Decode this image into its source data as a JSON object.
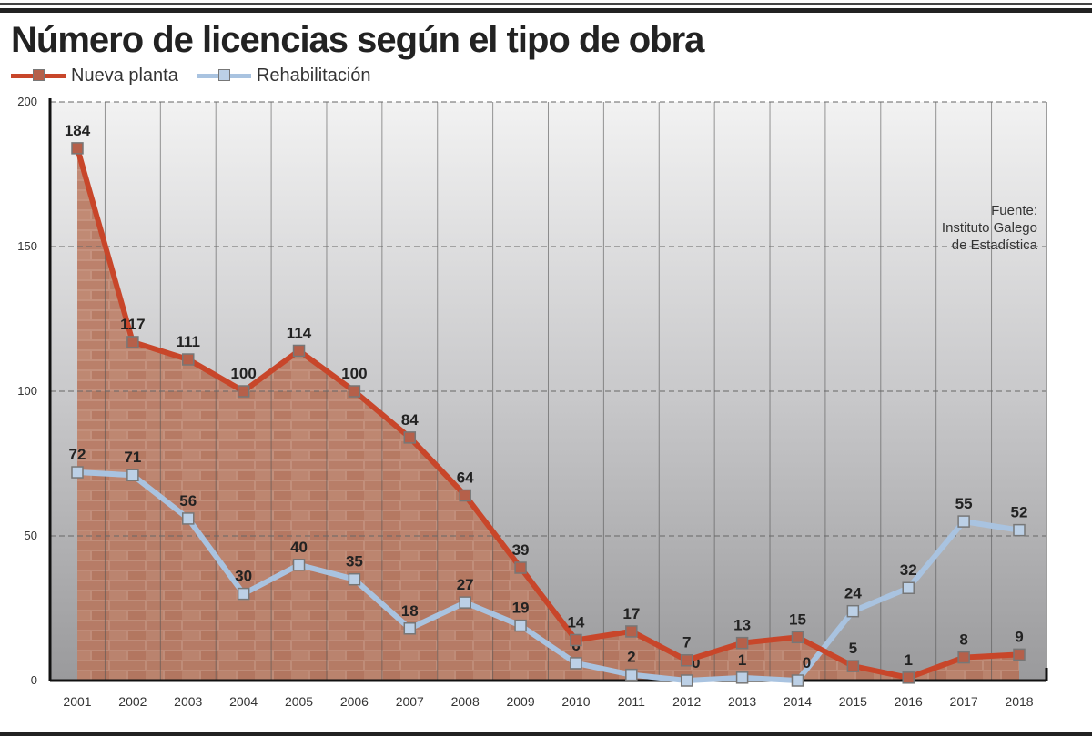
{
  "chart_data": {
    "type": "line",
    "title": "Número de licencias según el tipo de obra",
    "categories": [
      "2001",
      "2002",
      "2003",
      "2004",
      "2005",
      "2006",
      "2007",
      "2008",
      "2009",
      "2010",
      "2011",
      "2012",
      "2013",
      "2014",
      "2015",
      "2016",
      "2017",
      "2018"
    ],
    "series": [
      {
        "name": "Nueva planta",
        "color": "#c8462a",
        "values": [
          184,
          117,
          111,
          100,
          114,
          100,
          84,
          64,
          39,
          14,
          17,
          7,
          13,
          15,
          5,
          1,
          8,
          9
        ]
      },
      {
        "name": "Rehabilitación",
        "color": "#a9c3e0",
        "values": [
          72,
          71,
          56,
          30,
          40,
          35,
          18,
          27,
          19,
          6,
          2,
          0,
          1,
          0,
          24,
          32,
          55,
          52
        ]
      }
    ],
    "ylim": [
      0,
      200
    ],
    "yticks": [
      "0",
      "50",
      "100",
      "150",
      "200"
    ],
    "grid": true,
    "legend": "top-left",
    "source": [
      "Fuente:",
      "Instituto Galego",
      "de Estadística"
    ]
  }
}
